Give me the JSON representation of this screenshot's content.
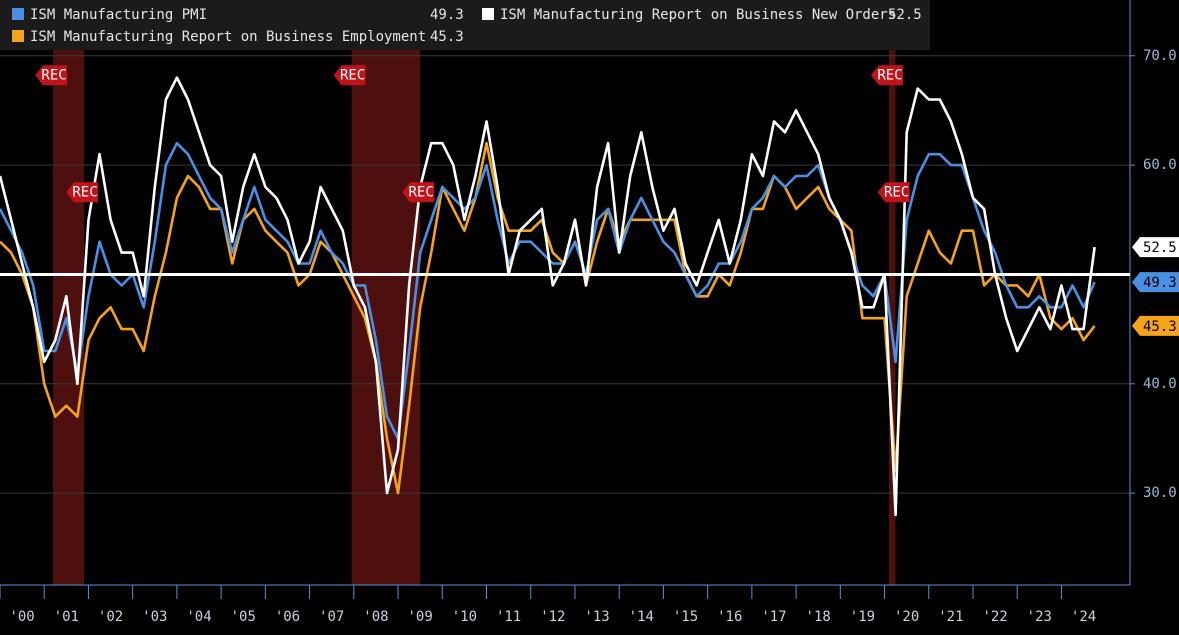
{
  "chart_data": {
    "type": "line",
    "x": [
      2000,
      2000.25,
      2000.5,
      2000.75,
      2001,
      2001.25,
      2001.5,
      2001.75,
      2002,
      2002.25,
      2002.5,
      2002.75,
      2003,
      2003.25,
      2003.5,
      2003.75,
      2004,
      2004.25,
      2004.5,
      2004.75,
      2005,
      2005.25,
      2005.5,
      2005.75,
      2006,
      2006.25,
      2006.5,
      2006.75,
      2007,
      2007.25,
      2007.5,
      2007.75,
      2008,
      2008.25,
      2008.5,
      2008.75,
      2009,
      2009.25,
      2009.5,
      2009.75,
      2010,
      2010.25,
      2010.5,
      2010.75,
      2011,
      2011.25,
      2011.5,
      2011.75,
      2012,
      2012.25,
      2012.5,
      2012.75,
      2013,
      2013.25,
      2013.5,
      2013.75,
      2014,
      2014.25,
      2014.5,
      2014.75,
      2015,
      2015.25,
      2015.5,
      2015.75,
      2016,
      2016.25,
      2016.5,
      2016.75,
      2017,
      2017.25,
      2017.5,
      2017.75,
      2018,
      2018.25,
      2018.5,
      2018.75,
      2019,
      2019.25,
      2019.5,
      2019.75,
      2020,
      2020.25,
      2020.5,
      2020.75,
      2021,
      2021.25,
      2021.5,
      2021.75,
      2022,
      2022.25,
      2022.5,
      2022.75,
      2023,
      2023.25,
      2023.5,
      2023.75,
      2024,
      2024.25,
      2024.5,
      2024.75
    ],
    "series": [
      {
        "name": "ISM Manufacturing PMI",
        "color": "#4a90e2",
        "values": [
          56,
          54,
          52,
          49,
          43,
          43,
          46,
          41,
          48,
          53,
          50,
          49,
          50,
          47,
          53,
          60,
          62,
          61,
          59,
          57,
          56,
          52,
          55,
          58,
          55,
          54,
          53,
          51,
          51,
          54,
          52,
          51,
          49,
          49,
          44,
          37,
          35,
          43,
          52,
          55,
          58,
          57,
          56,
          57,
          60,
          55,
          51,
          53,
          53,
          52,
          51,
          51,
          53,
          50,
          55,
          56,
          52,
          55,
          57,
          55,
          53,
          52,
          50,
          48,
          49,
          51,
          51,
          53,
          56,
          57,
          59,
          58,
          59,
          59,
          60,
          57,
          55,
          52,
          49,
          48,
          50,
          42,
          55,
          59,
          61,
          61,
          60,
          60,
          57,
          54,
          52,
          49,
          47,
          47,
          48,
          47,
          47,
          49,
          47,
          49.3
        ]
      },
      {
        "name": "ISM Manufacturing Report on Business New Orders",
        "color": "#ffffff",
        "values": [
          59,
          55,
          51,
          47,
          42,
          44,
          48,
          40,
          55,
          61,
          55,
          52,
          52,
          48,
          58,
          66,
          68,
          66,
          63,
          60,
          59,
          53,
          58,
          61,
          58,
          57,
          55,
          51,
          53,
          58,
          56,
          54,
          49,
          47,
          42,
          30,
          34,
          49,
          58,
          62,
          62,
          60,
          55,
          59,
          64,
          58,
          50,
          54,
          55,
          56,
          49,
          51,
          55,
          49,
          58,
          62,
          52,
          59,
          63,
          58,
          54,
          56,
          51,
          49,
          52,
          55,
          51,
          55,
          61,
          59,
          64,
          63,
          65,
          63,
          61,
          57,
          55,
          52,
          47,
          47,
          50,
          28,
          63,
          67,
          66,
          66,
          64,
          61,
          57,
          56,
          50,
          46,
          43,
          45,
          47,
          45,
          49,
          45,
          45,
          52.5
        ]
      },
      {
        "name": "ISM Manufacturing Report on Business Employment",
        "color": "#f5a31a",
        "values": [
          53,
          52,
          50,
          47,
          40,
          37,
          38,
          37,
          44,
          46,
          47,
          45,
          45,
          43,
          48,
          52,
          57,
          59,
          58,
          56,
          56,
          51,
          55,
          56,
          54,
          53,
          52,
          49,
          50,
          53,
          52,
          50,
          48,
          46,
          42,
          35,
          30,
          38,
          47,
          52,
          58,
          56,
          54,
          57,
          62,
          57,
          54,
          54,
          54,
          55,
          52,
          51,
          55,
          49,
          53,
          56,
          53,
          55,
          55,
          55,
          55,
          55,
          50,
          48,
          48,
          50,
          49,
          52,
          56,
          56,
          59,
          58,
          56,
          57,
          58,
          56,
          55,
          54,
          46,
          46,
          46,
          32,
          48,
          51,
          54,
          52,
          51,
          54,
          54,
          49,
          50,
          49,
          49,
          48,
          50,
          46,
          45,
          46,
          44,
          45.3
        ]
      }
    ],
    "xlim": [
      2000,
      2025.55
    ],
    "xticks": [
      {
        "value": 2000,
        "label": "'00"
      },
      {
        "value": 2001,
        "label": "'01"
      },
      {
        "value": 2002,
        "label": "'02"
      },
      {
        "value": 2003,
        "label": "'03"
      },
      {
        "value": 2004,
        "label": "'04"
      },
      {
        "value": 2005,
        "label": "'05"
      },
      {
        "value": 2006,
        "label": "'06"
      },
      {
        "value": 2007,
        "label": "'07"
      },
      {
        "value": 2008,
        "label": "'08"
      },
      {
        "value": 2009,
        "label": "'09"
      },
      {
        "value": 2010,
        "label": "'10"
      },
      {
        "value": 2011,
        "label": "'11"
      },
      {
        "value": 2012,
        "label": "'12"
      },
      {
        "value": 2013,
        "label": "'13"
      },
      {
        "value": 2014,
        "label": "'14"
      },
      {
        "value": 2015,
        "label": "'15"
      },
      {
        "value": 2016,
        "label": "'16"
      },
      {
        "value": 2017,
        "label": "'17"
      },
      {
        "value": 2018,
        "label": "'18"
      },
      {
        "value": 2019,
        "label": "'19"
      },
      {
        "value": 2020,
        "label": "'20"
      },
      {
        "value": 2021,
        "label": "'21"
      },
      {
        "value": 2022,
        "label": "'22"
      },
      {
        "value": 2023,
        "label": "'23"
      },
      {
        "value": 2024,
        "label": "'24"
      }
    ],
    "ylim": [
      21.6,
      75.1
    ],
    "yticks": [
      {
        "value": 30,
        "label": "30.0"
      },
      {
        "value": 40,
        "label": "40.0"
      },
      {
        "value": 60,
        "label": "60.0"
      },
      {
        "value": 70,
        "label": "70.0"
      }
    ],
    "reference_line": 50,
    "recessions": [
      {
        "start": 2001.2,
        "end": 2001.9,
        "label": "REC"
      },
      {
        "start": 2007.95,
        "end": 2009.5,
        "label": "REC"
      },
      {
        "start": 2020.1,
        "end": 2020.25,
        "label": "REC"
      }
    ],
    "grid": true
  }
}
